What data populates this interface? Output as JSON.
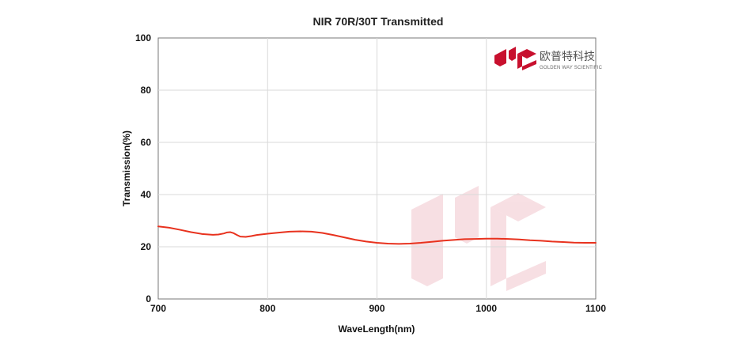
{
  "chart_data": {
    "type": "line",
    "title": "NIR 70R/30T Transmitted",
    "xlabel": "WaveLength(nm)",
    "ylabel": "Transmission(%)",
    "xlim": [
      700,
      1100
    ],
    "ylim": [
      0,
      100
    ],
    "xticks": [
      700,
      800,
      900,
      1000,
      1100
    ],
    "yticks": [
      0,
      20,
      40,
      60,
      80,
      100
    ],
    "grid": true,
    "series": [
      {
        "color": "#e8321e",
        "x": [
          700,
          710,
          720,
          730,
          740,
          750,
          755,
          760,
          763,
          766,
          769,
          772,
          775,
          780,
          785,
          790,
          800,
          810,
          820,
          830,
          840,
          850,
          860,
          870,
          880,
          890,
          900,
          910,
          920,
          930,
          940,
          950,
          960,
          970,
          980,
          990,
          1000,
          1010,
          1020,
          1030,
          1040,
          1050,
          1060,
          1070,
          1080,
          1090,
          1100
        ],
        "y": [
          27.8,
          27.3,
          26.5,
          25.6,
          24.9,
          24.6,
          24.7,
          25.1,
          25.5,
          25.6,
          25.2,
          24.5,
          23.9,
          23.8,
          24.1,
          24.5,
          25.0,
          25.4,
          25.8,
          25.9,
          25.8,
          25.3,
          24.5,
          23.6,
          22.7,
          22.0,
          21.5,
          21.2,
          21.1,
          21.2,
          21.5,
          21.9,
          22.3,
          22.6,
          22.9,
          23.0,
          23.1,
          23.1,
          23.0,
          22.8,
          22.5,
          22.3,
          22.0,
          21.8,
          21.6,
          21.5,
          21.5
        ]
      }
    ]
  },
  "logo": {
    "name_cn": "欧普特科技",
    "name_en": "GOLDEN WAY SCIENTIFIC",
    "color": "#c8102e"
  }
}
